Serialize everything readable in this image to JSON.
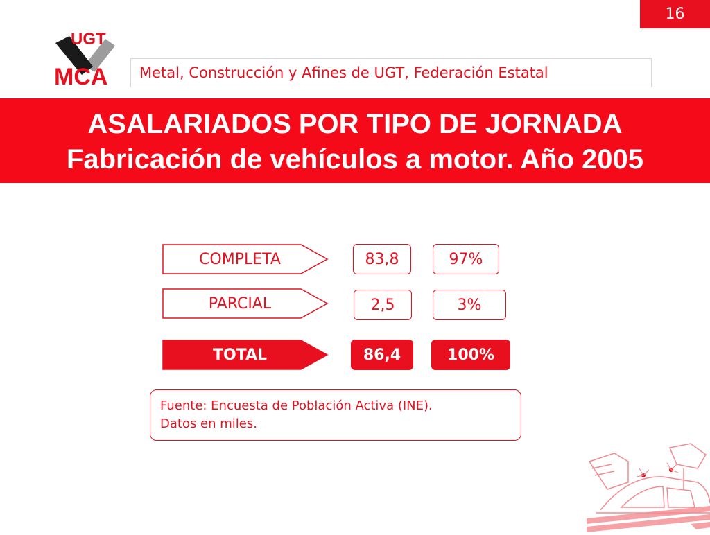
{
  "page_number": "16",
  "logo": {
    "top_text": "UGT",
    "bottom_text": "MCA"
  },
  "header": {
    "organization": "Metal, Construcción y Afines de UGT, Federación Estatal"
  },
  "title": {
    "line1": "ASALARIADOS POR TIPO DE JORNADA",
    "line2": "Fabricación de vehículos a motor. Año 2005"
  },
  "rows": [
    {
      "label": "COMPLETA",
      "value": "83,8",
      "percent": "97%"
    },
    {
      "label": "PARCIAL",
      "value": "2,5",
      "percent": "3%"
    },
    {
      "label": "TOTAL",
      "value": "86,4",
      "percent": "100%"
    }
  ],
  "source": {
    "line1": "Fuente: Encuesta de Población Activa (INE).",
    "line2": "Datos en miles."
  },
  "colors": {
    "accent": "#e8101e",
    "band": "#f50a1a"
  }
}
